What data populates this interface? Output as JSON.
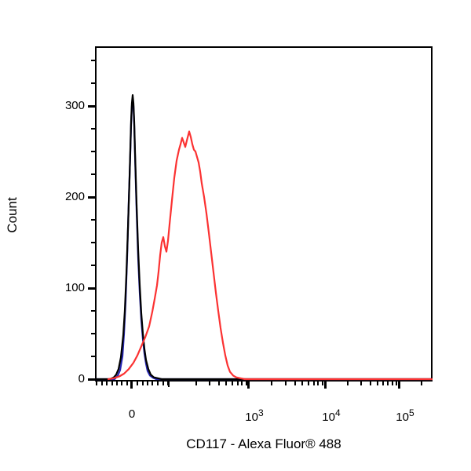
{
  "chart_data": {
    "type": "line",
    "subtype": "flow-cytometry-histogram-overlay",
    "title": "",
    "xlabel": "CD117 - Alexa Fluor® 488",
    "ylabel": "Count",
    "grid": false,
    "legend": "none",
    "x_axis": {
      "scale": "biexponential",
      "major_ticks": [
        {
          "base": "0",
          "exp": "",
          "u": 0.1093
        },
        {
          "base": "10",
          "exp": "3",
          "u": 0.4558
        },
        {
          "base": "10",
          "exp": "4",
          "u": 0.6837
        },
        {
          "base": "10",
          "exp": "5",
          "u": 0.9023
        }
      ],
      "medium_tick_u": [
        0.2186
      ],
      "minor_ticks_u": [
        0.0047,
        0.0198,
        0.0349,
        0.05,
        0.0651,
        0.0802,
        0.0953,
        0.1256,
        0.1407,
        0.1558,
        0.1709,
        0.186,
        0.2012,
        0.2163,
        0.3,
        0.3395,
        0.3674,
        0.3884,
        0.407,
        0.4221,
        0.436,
        0.4477,
        0.5244,
        0.5647,
        0.593,
        0.6151,
        0.6333,
        0.6484,
        0.6616,
        0.6735,
        0.7495,
        0.7879,
        0.8153,
        0.8363,
        0.8535,
        0.8681,
        0.8807,
        0.8919,
        0.9681
      ]
    },
    "y_axis": {
      "min": 0,
      "max": 366,
      "major_ticks": [
        {
          "label": "0",
          "count": 0
        },
        {
          "label": "100",
          "count": 100
        },
        {
          "label": "200",
          "count": 200
        },
        {
          "label": "300",
          "count": 300
        }
      ],
      "minor_tick_counts": [
        25,
        50,
        75,
        125,
        150,
        175,
        225,
        250,
        275,
        325,
        350
      ]
    },
    "series": [
      {
        "name": "control-blue",
        "color": "#2525b2",
        "peak_count": 308,
        "points": [
          [
            0,
            0
          ],
          [
            0.0581,
            0
          ],
          [
            0.0674,
            4
          ],
          [
            0.0744,
            10
          ],
          [
            0.0814,
            25
          ],
          [
            0.086,
            50
          ],
          [
            0.0907,
            85
          ],
          [
            0.0953,
            135
          ],
          [
            0.1,
            195
          ],
          [
            0.1047,
            248
          ],
          [
            0.107,
            280
          ],
          [
            0.1093,
            300
          ],
          [
            0.1116,
            308
          ],
          [
            0.114,
            300
          ],
          [
            0.1163,
            278
          ],
          [
            0.1186,
            245
          ],
          [
            0.1233,
            185
          ],
          [
            0.1279,
            133
          ],
          [
            0.1326,
            95
          ],
          [
            0.1372,
            65
          ],
          [
            0.1419,
            44
          ],
          [
            0.1465,
            28
          ],
          [
            0.1512,
            17
          ],
          [
            0.1558,
            9
          ],
          [
            0.1628,
            4
          ],
          [
            0.1721,
            1.5
          ],
          [
            0.1814,
            0
          ],
          [
            1,
            0
          ]
        ]
      },
      {
        "name": "control-black",
        "color": "#000000",
        "peak_count": 312,
        "points": [
          [
            0,
            0
          ],
          [
            0.0442,
            0
          ],
          [
            0.0558,
            2
          ],
          [
            0.0628,
            5
          ],
          [
            0.0698,
            11
          ],
          [
            0.0767,
            24
          ],
          [
            0.0837,
            48
          ],
          [
            0.0884,
            75
          ],
          [
            0.093,
            115
          ],
          [
            0.0977,
            165
          ],
          [
            0.1023,
            220
          ],
          [
            0.1047,
            252
          ],
          [
            0.107,
            283
          ],
          [
            0.1093,
            303
          ],
          [
            0.1116,
            312
          ],
          [
            0.114,
            303
          ],
          [
            0.1163,
            282
          ],
          [
            0.1186,
            250
          ],
          [
            0.1233,
            192
          ],
          [
            0.1279,
            142
          ],
          [
            0.1326,
            103
          ],
          [
            0.1372,
            72
          ],
          [
            0.1419,
            50
          ],
          [
            0.1465,
            33
          ],
          [
            0.1512,
            21
          ],
          [
            0.1581,
            11
          ],
          [
            0.1651,
            5
          ],
          [
            0.1744,
            2
          ],
          [
            0.186,
            1
          ],
          [
            0.1977,
            0
          ],
          [
            1,
            0
          ]
        ]
      },
      {
        "name": "cd117-red",
        "color": "#fb3232",
        "peak_count": 272,
        "points": [
          [
            0.0395,
            0
          ],
          [
            0.0558,
            1
          ],
          [
            0.0721,
            3
          ],
          [
            0.086,
            6
          ],
          [
            0.1,
            11
          ],
          [
            0.114,
            18
          ],
          [
            0.1256,
            26
          ],
          [
            0.1372,
            36
          ],
          [
            0.1488,
            46
          ],
          [
            0.1605,
            58
          ],
          [
            0.1698,
            74
          ],
          [
            0.1767,
            88
          ],
          [
            0.1837,
            103
          ],
          [
            0.1884,
            118
          ],
          [
            0.193,
            136
          ],
          [
            0.1977,
            150
          ],
          [
            0.2023,
            156
          ],
          [
            0.207,
            146
          ],
          [
            0.2116,
            140
          ],
          [
            0.2163,
            152
          ],
          [
            0.2209,
            170
          ],
          [
            0.2279,
            196
          ],
          [
            0.2349,
            221
          ],
          [
            0.2419,
            240
          ],
          [
            0.2488,
            252
          ],
          [
            0.2535,
            258
          ],
          [
            0.2581,
            265
          ],
          [
            0.2628,
            260
          ],
          [
            0.2674,
            255
          ],
          [
            0.2721,
            262
          ],
          [
            0.2791,
            272
          ],
          [
            0.2837,
            266
          ],
          [
            0.2884,
            258
          ],
          [
            0.293,
            252
          ],
          [
            0.2977,
            250
          ],
          [
            0.3023,
            244
          ],
          [
            0.307,
            238
          ],
          [
            0.3116,
            228
          ],
          [
            0.3163,
            215
          ],
          [
            0.3233,
            200
          ],
          [
            0.3302,
            182
          ],
          [
            0.3372,
            161
          ],
          [
            0.3442,
            139
          ],
          [
            0.3512,
            117
          ],
          [
            0.3581,
            95
          ],
          [
            0.3651,
            75
          ],
          [
            0.3721,
            56
          ],
          [
            0.3791,
            40
          ],
          [
            0.386,
            26
          ],
          [
            0.393,
            15
          ],
          [
            0.4,
            8
          ],
          [
            0.4093,
            4
          ],
          [
            0.4186,
            2
          ],
          [
            0.4302,
            1
          ],
          [
            0.4442,
            0
          ],
          [
            1,
            0
          ]
        ]
      }
    ]
  }
}
